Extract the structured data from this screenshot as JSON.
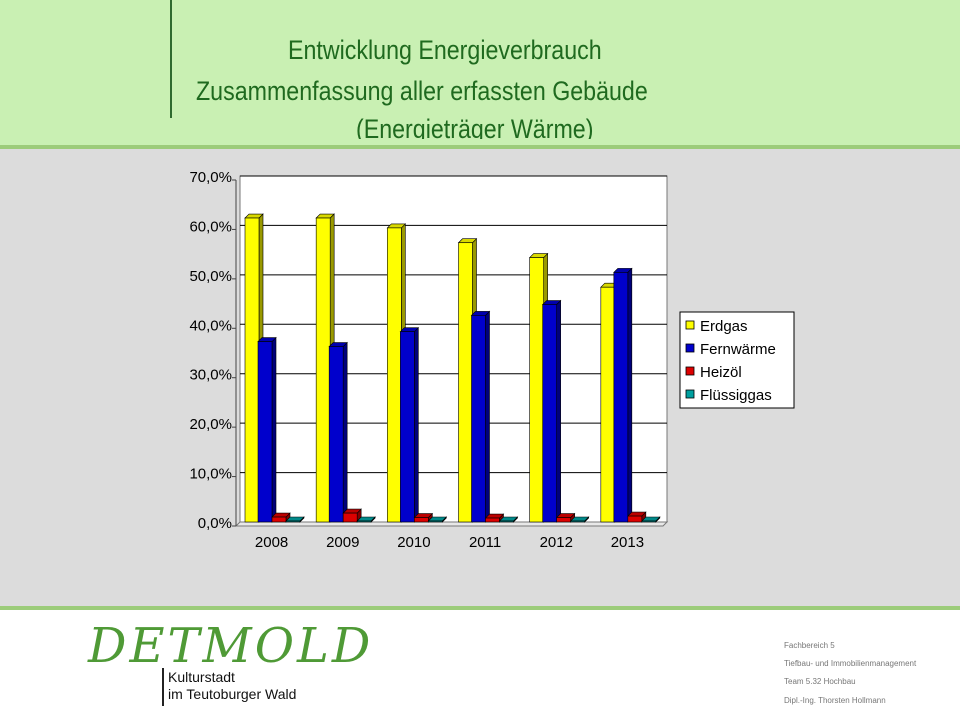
{
  "header": {
    "title_line1": "Entwicklung Energieverbrauch",
    "title_line2": "Zusammenfassung aller erfassten Gebäude",
    "title_line3": "(Energieträger Wärme)"
  },
  "footer": {
    "logo_text": "DETMOLD",
    "logo_sub1": "Kulturstadt",
    "logo_sub2": "im Teutoburger Wald",
    "credits": [
      "Fachbereich 5",
      "Tiefbau- und Immobilienmanagement",
      "Team 5.32 Hochbau",
      "Dipl.-Ing. Thorsten Hollmann"
    ]
  },
  "colors": {
    "Erdgas": "#ffff00",
    "Fernwärme": "#0000cc",
    "Heizöl": "#dd0000",
    "Flüssiggas": "#00a0a0"
  },
  "chart_data": {
    "type": "bar",
    "three_d": true,
    "categories": [
      "2008",
      "2009",
      "2010",
      "2011",
      "2012",
      "2013"
    ],
    "series": [
      {
        "name": "Erdgas",
        "values": [
          61.5,
          61.5,
          59.5,
          56.5,
          53.5,
          47.5
        ]
      },
      {
        "name": "Fernwärme",
        "values": [
          36.5,
          35.5,
          38.5,
          41.8,
          44.0,
          50.5
        ]
      },
      {
        "name": "Heizöl",
        "values": [
          1.0,
          1.8,
          0.9,
          0.8,
          0.9,
          1.2
        ]
      },
      {
        "name": "Flüssiggas",
        "values": [
          0.2,
          0.2,
          0.2,
          0.2,
          0.2,
          0.2
        ]
      }
    ],
    "y_ticks": [
      "0,0%",
      "10,0%",
      "20,0%",
      "30,0%",
      "40,0%",
      "50,0%",
      "60,0%",
      "70,0%"
    ],
    "ylim": [
      0,
      70
    ],
    "grid": true,
    "legend": "right"
  }
}
